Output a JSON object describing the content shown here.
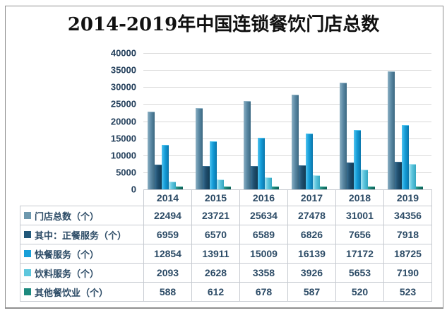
{
  "title": "2014-2019年中国连锁餐饮门店总数",
  "chart_data": {
    "type": "bar",
    "title": "2014-2019年中国连锁餐饮门店总数",
    "categories": [
      "2014",
      "2015",
      "2016",
      "2017",
      "2018",
      "2019"
    ],
    "series": [
      {
        "name": "门店总数（个）",
        "values": [
          22494,
          23721,
          25634,
          27478,
          31001,
          34356
        ]
      },
      {
        "name": "其中：正餐服务（个）",
        "values": [
          6959,
          6570,
          6589,
          6826,
          7656,
          7918
        ]
      },
      {
        "name": "快餐服务（个）",
        "values": [
          12854,
          13911,
          15009,
          16139,
          17172,
          18725
        ]
      },
      {
        "name": "饮料服务（个）",
        "values": [
          2093,
          2628,
          3358,
          3926,
          5653,
          7190
        ]
      },
      {
        "name": "其他餐饮业（个）",
        "values": [
          588,
          612,
          678,
          587,
          520,
          523
        ]
      }
    ],
    "ylim": [
      0,
      40000
    ],
    "ytick_step": 5000,
    "ytick_labels": [
      "40000",
      "35000",
      "30000",
      "25000",
      "20000",
      "15000",
      "10000",
      "5000",
      "0"
    ],
    "grid": true,
    "legend_position": "data-table-left-column",
    "data_table_shown": true
  },
  "colors": {
    "series_legend": [
      "#6d98ae",
      "#21587a",
      "#189fd8",
      "#5ec7dd",
      "#1d8a7e"
    ],
    "series_gradient": [
      [
        "#8db1c4",
        "#5d8ba6",
        "#3a6781"
      ],
      [
        "#3a7093",
        "#1f4e6e",
        "#133a52"
      ],
      [
        "#52c4f0",
        "#149dd8",
        "#0b76ab"
      ],
      [
        "#aee6f2",
        "#5cc6de",
        "#35a6c0"
      ],
      [
        "#2d9c8f",
        "#157a6e",
        "#0c5c52"
      ]
    ],
    "gridline": "#d9d9d9",
    "table_border": "#c6cad0",
    "axis_text": "#24405c",
    "table_text": "#2c4b66",
    "title_text": "#111111",
    "frame_border": "#8f8f8f",
    "background": "#ffffff"
  }
}
